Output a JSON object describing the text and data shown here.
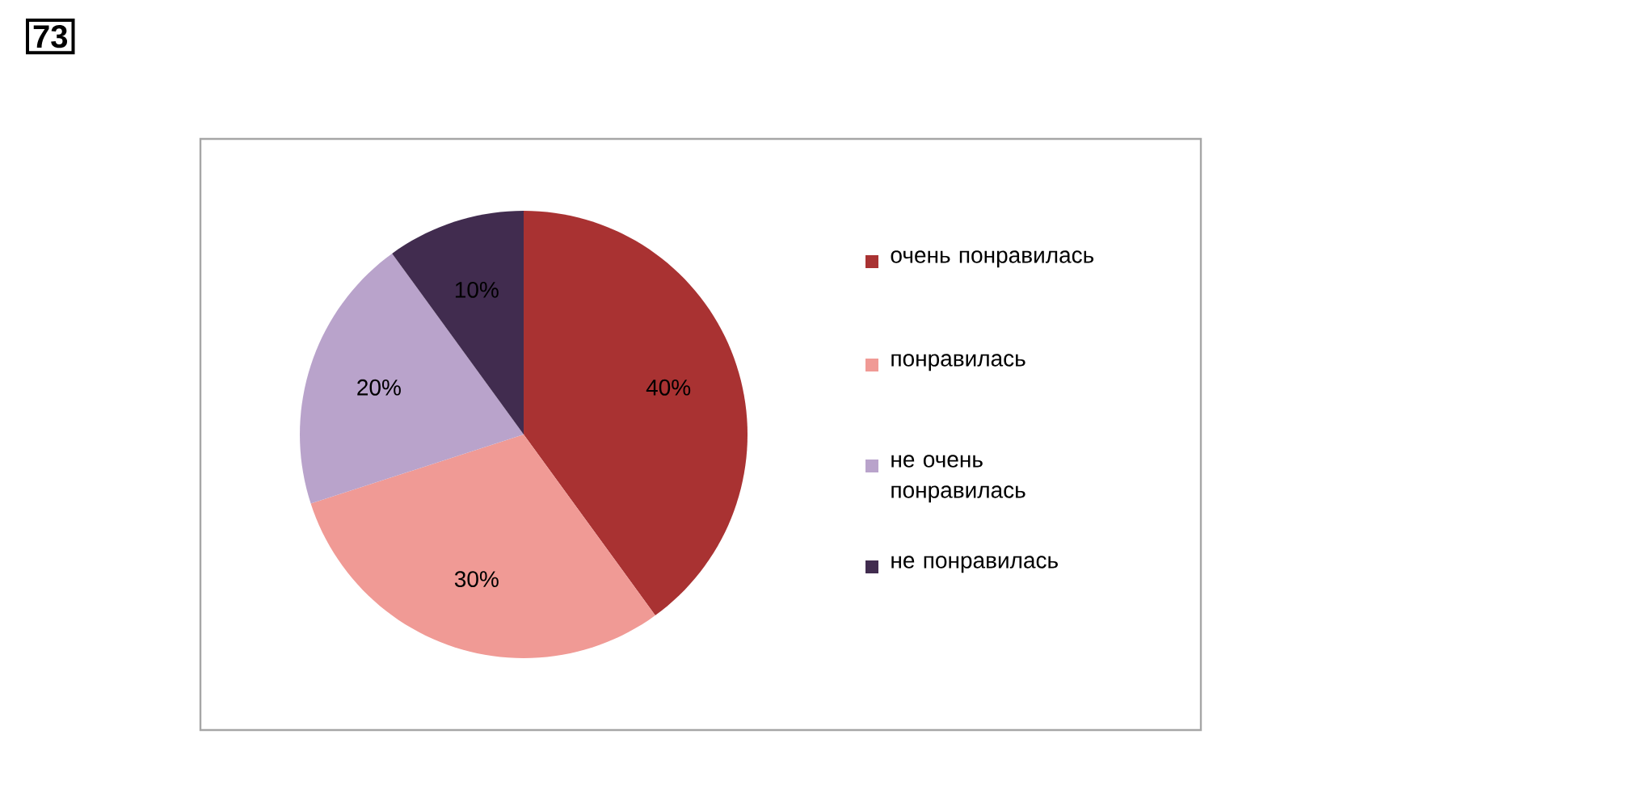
{
  "chart_data": {
    "type": "pie",
    "categories": [
      "очень понравилась",
      "понравилась",
      "не очень понравилась",
      "не понравилась"
    ],
    "values": [
      40,
      30,
      20,
      10
    ],
    "colors": [
      "#a93232",
      "#f09a95",
      "#b9a3cb",
      "#412c4f"
    ],
    "value_labels": [
      "40%",
      "30%",
      "20%",
      "10%"
    ],
    "legend": "right",
    "annotations": [
      "73"
    ]
  }
}
